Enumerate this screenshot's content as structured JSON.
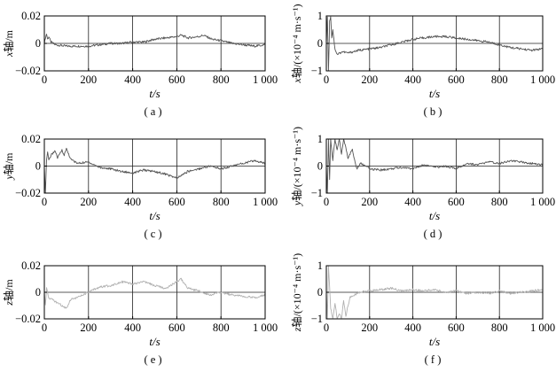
{
  "figure": {
    "panels": [
      {
        "id": "a",
        "ylabel_var": "x",
        "ylabel_rest": "轴/m",
        "xlabel": "t/s",
        "caption": "( a )"
      },
      {
        "id": "b",
        "ylabel_var": "x",
        "ylabel_rest": "轴/(×10⁻⁴ m·s⁻¹)",
        "xlabel": "t/s",
        "caption": "( b )"
      },
      {
        "id": "c",
        "ylabel_var": "y",
        "ylabel_rest": "轴/m",
        "xlabel": "t/s",
        "caption": "( c )"
      },
      {
        "id": "d",
        "ylabel_var": "y",
        "ylabel_rest": "轴/(×10⁻⁴ m·s⁻¹)",
        "xlabel": "t/s",
        "caption": "( d )"
      },
      {
        "id": "e",
        "ylabel_var": "z",
        "ylabel_rest": "轴/m",
        "xlabel": "t/s",
        "caption": "( e )"
      },
      {
        "id": "f",
        "ylabel_var": "z",
        "ylabel_rest": "轴/(×10⁻⁴ m·s⁻¹)",
        "xlabel": "t/s",
        "caption": "( f )"
      }
    ]
  },
  "chart_data": [
    {
      "panel": "a",
      "type": "line",
      "ylabel": "x轴/m",
      "xlabel": "t/s",
      "xlim": [
        0,
        1000
      ],
      "ylim": [
        -0.02,
        0.02
      ],
      "xticks": [
        0,
        200,
        400,
        600,
        800,
        1000
      ],
      "xtick_labels": [
        "0",
        "200",
        "400",
        "600",
        "800",
        "1 000"
      ],
      "yticks": [
        -0.02,
        0,
        0.02
      ],
      "ytick_labels": [
        "−0.02",
        "0",
        "0.02"
      ],
      "grid": "vertical lines at x ticks, horizontal line at y=0",
      "color": "#555555",
      "series": [
        {
          "points": [
            [
              0,
              0.0
            ],
            [
              5,
              0.004
            ],
            [
              10,
              0.007
            ],
            [
              15,
              0.003
            ],
            [
              20,
              0.005
            ],
            [
              30,
              0.001
            ],
            [
              50,
              -0.001
            ],
            [
              100,
              -0.002
            ],
            [
              150,
              -0.002
            ],
            [
              200,
              -0.002
            ],
            [
              250,
              -0.001
            ],
            [
              300,
              0.0
            ],
            [
              350,
              0.0
            ],
            [
              400,
              0.001
            ],
            [
              450,
              0.001
            ],
            [
              500,
              0.003
            ],
            [
              550,
              0.004
            ],
            [
              600,
              0.005
            ],
            [
              620,
              0.006
            ],
            [
              650,
              0.004
            ],
            [
              700,
              0.005
            ],
            [
              720,
              0.006
            ],
            [
              760,
              0.003
            ],
            [
              800,
              0.002
            ],
            [
              850,
              0.0
            ],
            [
              900,
              -0.001
            ],
            [
              950,
              -0.002
            ],
            [
              1000,
              -0.001
            ]
          ]
        }
      ]
    },
    {
      "panel": "b",
      "type": "line",
      "ylabel": "x轴/(×10⁻⁴ m·s⁻¹)",
      "xlabel": "t/s",
      "xlim": [
        0,
        1000
      ],
      "ylim": [
        -1,
        1
      ],
      "xticks": [
        0,
        200,
        400,
        600,
        800,
        1000
      ],
      "xtick_labels": [
        "0",
        "200",
        "400",
        "600",
        "800",
        "1 000"
      ],
      "yticks": [
        -1,
        0,
        1
      ],
      "ytick_labels": [
        "−1",
        "0",
        "1"
      ],
      "grid": "vertical lines at x ticks, horizontal line at y=0",
      "color": "#555555",
      "series": [
        {
          "points": [
            [
              0,
              0.0
            ],
            [
              5,
              1.0
            ],
            [
              10,
              -1.0
            ],
            [
              15,
              0.8
            ],
            [
              20,
              1.0
            ],
            [
              25,
              0.2
            ],
            [
              30,
              0.5
            ],
            [
              40,
              -0.2
            ],
            [
              50,
              -0.4
            ],
            [
              75,
              -0.3
            ],
            [
              100,
              -0.35
            ],
            [
              150,
              -0.25
            ],
            [
              200,
              -0.2
            ],
            [
              250,
              -0.15
            ],
            [
              300,
              -0.05
            ],
            [
              350,
              0.05
            ],
            [
              400,
              0.15
            ],
            [
              450,
              0.2
            ],
            [
              500,
              0.25
            ],
            [
              550,
              0.25
            ],
            [
              600,
              0.2
            ],
            [
              650,
              0.15
            ],
            [
              700,
              0.1
            ],
            [
              750,
              0.05
            ],
            [
              800,
              -0.05
            ],
            [
              850,
              -0.15
            ],
            [
              900,
              -0.2
            ],
            [
              950,
              -0.25
            ],
            [
              1000,
              -0.2
            ]
          ]
        }
      ]
    },
    {
      "panel": "c",
      "type": "line",
      "ylabel": "y轴/m",
      "xlabel": "t/s",
      "xlim": [
        0,
        1000
      ],
      "ylim": [
        -0.02,
        0.02
      ],
      "xticks": [
        0,
        200,
        400,
        600,
        800,
        1000
      ],
      "xtick_labels": [
        "0",
        "200",
        "400",
        "600",
        "800",
        "1 000"
      ],
      "yticks": [
        -0.02,
        0,
        0.02
      ],
      "ytick_labels": [
        "−0.02",
        "0",
        "0.02"
      ],
      "grid": "vertical lines at x ticks, horizontal line at y=0",
      "color": "#555555",
      "series": [
        {
          "points": [
            [
              0,
              0.0
            ],
            [
              5,
              -0.02
            ],
            [
              10,
              0.005
            ],
            [
              15,
              0.01
            ],
            [
              20,
              0.004
            ],
            [
              30,
              0.008
            ],
            [
              40,
              0.01
            ],
            [
              50,
              0.011
            ],
            [
              60,
              0.006
            ],
            [
              70,
              0.009
            ],
            [
              80,
              0.012
            ],
            [
              90,
              0.008
            ],
            [
              100,
              0.013
            ],
            [
              120,
              0.005
            ],
            [
              150,
              0.002
            ],
            [
              200,
              0.003
            ],
            [
              250,
              -0.001
            ],
            [
              300,
              -0.002
            ],
            [
              350,
              -0.004
            ],
            [
              400,
              -0.005
            ],
            [
              450,
              -0.003
            ],
            [
              500,
              -0.004
            ],
            [
              550,
              -0.006
            ],
            [
              600,
              -0.009
            ],
            [
              650,
              -0.004
            ],
            [
              700,
              -0.002
            ],
            [
              750,
              0.0
            ],
            [
              800,
              -0.002
            ],
            [
              850,
              0.0
            ],
            [
              900,
              0.002
            ],
            [
              950,
              0.004
            ],
            [
              1000,
              0.002
            ]
          ]
        }
      ]
    },
    {
      "panel": "d",
      "type": "line",
      "ylabel": "y轴/(×10⁻⁴ m·s⁻¹)",
      "xlabel": "t/s",
      "xlim": [
        0,
        1000
      ],
      "ylim": [
        -1,
        1
      ],
      "xticks": [
        0,
        200,
        400,
        600,
        800,
        1000
      ],
      "xtick_labels": [
        "0",
        "200",
        "400",
        "600",
        "800",
        "1 000"
      ],
      "yticks": [
        -1,
        0,
        1
      ],
      "ytick_labels": [
        "−1",
        "0",
        "1"
      ],
      "grid": "vertical lines at x ticks, horizontal line at y=0",
      "color": "#555555",
      "series": [
        {
          "points": [
            [
              0,
              0.0
            ],
            [
              5,
              -1.0
            ],
            [
              10,
              1.0
            ],
            [
              15,
              -0.5
            ],
            [
              20,
              1.0
            ],
            [
              30,
              0.2
            ],
            [
              40,
              1.0
            ],
            [
              50,
              0.6
            ],
            [
              60,
              1.0
            ],
            [
              70,
              0.4
            ],
            [
              80,
              1.0
            ],
            [
              90,
              0.7
            ],
            [
              100,
              0.3
            ],
            [
              120,
              0.6
            ],
            [
              140,
              -0.1
            ],
            [
              160,
              0.1
            ],
            [
              200,
              -0.1
            ],
            [
              250,
              -0.15
            ],
            [
              300,
              -0.1
            ],
            [
              350,
              -0.05
            ],
            [
              400,
              -0.1
            ],
            [
              450,
              0.05
            ],
            [
              500,
              -0.05
            ],
            [
              550,
              0.0
            ],
            [
              600,
              -0.1
            ],
            [
              650,
              0.1
            ],
            [
              700,
              0.05
            ],
            [
              750,
              0.15
            ],
            [
              800,
              0.1
            ],
            [
              850,
              0.2
            ],
            [
              900,
              0.15
            ],
            [
              950,
              0.1
            ],
            [
              1000,
              0.05
            ]
          ]
        }
      ]
    },
    {
      "panel": "e",
      "type": "line",
      "ylabel": "z轴/m",
      "xlabel": "t/s",
      "xlim": [
        0,
        1000
      ],
      "ylim": [
        -0.02,
        0.02
      ],
      "xticks": [
        0,
        200,
        400,
        600,
        800,
        1000
      ],
      "xtick_labels": [
        "0",
        "200",
        "400",
        "600",
        "800",
        "1 000"
      ],
      "yticks": [
        -0.02,
        0,
        0.02
      ],
      "ytick_labels": [
        "−0.02",
        "0",
        "0.02"
      ],
      "grid": "vertical lines at x ticks, horizontal line at y=0",
      "color": "#b0b0b0",
      "series": [
        {
          "points": [
            [
              0,
              0.0
            ],
            [
              5,
              -0.01
            ],
            [
              10,
              0.004
            ],
            [
              20,
              -0.004
            ],
            [
              40,
              -0.006
            ],
            [
              60,
              -0.008
            ],
            [
              80,
              -0.01
            ],
            [
              100,
              -0.012
            ],
            [
              120,
              -0.005
            ],
            [
              150,
              -0.004
            ],
            [
              200,
              0.0
            ],
            [
              250,
              0.004
            ],
            [
              300,
              0.005
            ],
            [
              350,
              0.008
            ],
            [
              400,
              0.006
            ],
            [
              450,
              0.008
            ],
            [
              500,
              0.005
            ],
            [
              550,
              0.003
            ],
            [
              600,
              0.008
            ],
            [
              620,
              0.01
            ],
            [
              650,
              0.003
            ],
            [
              700,
              0.001
            ],
            [
              750,
              -0.002
            ],
            [
              800,
              0.0
            ],
            [
              850,
              -0.002
            ],
            [
              900,
              -0.003
            ],
            [
              950,
              -0.004
            ],
            [
              1000,
              -0.002
            ]
          ]
        }
      ]
    },
    {
      "panel": "f",
      "type": "line",
      "ylabel": "z轴/(×10⁻⁴ m·s⁻¹)",
      "xlabel": "t/s",
      "xlim": [
        0,
        1000
      ],
      "ylim": [
        -1,
        1
      ],
      "xticks": [
        0,
        200,
        400,
        600,
        800,
        1000
      ],
      "xtick_labels": [
        "0",
        "200",
        "400",
        "600",
        "800",
        "1 000"
      ],
      "yticks": [
        -1,
        0,
        1
      ],
      "ytick_labels": [
        "−1",
        "0",
        "1"
      ],
      "grid": "vertical lines at x ticks, horizontal line at y=0",
      "color": "#b0b0b0",
      "series": [
        {
          "points": [
            [
              0,
              0.0
            ],
            [
              5,
              -1.0
            ],
            [
              10,
              1.0
            ],
            [
              20,
              -0.6
            ],
            [
              30,
              -1.0
            ],
            [
              40,
              -0.4
            ],
            [
              50,
              -1.0
            ],
            [
              60,
              -0.8
            ],
            [
              70,
              -1.0
            ],
            [
              80,
              -0.3
            ],
            [
              90,
              -0.9
            ],
            [
              100,
              -0.5
            ],
            [
              110,
              -0.2
            ],
            [
              130,
              -0.1
            ],
            [
              150,
              0.0
            ],
            [
              200,
              0.05
            ],
            [
              250,
              0.1
            ],
            [
              300,
              0.15
            ],
            [
              350,
              0.05
            ],
            [
              400,
              0.1
            ],
            [
              450,
              0.05
            ],
            [
              500,
              0.1
            ],
            [
              550,
              0.0
            ],
            [
              600,
              0.05
            ],
            [
              650,
              -0.05
            ],
            [
              700,
              0.0
            ],
            [
              750,
              -0.05
            ],
            [
              800,
              0.05
            ],
            [
              850,
              -0.05
            ],
            [
              900,
              0.0
            ],
            [
              950,
              0.05
            ],
            [
              1000,
              0.1
            ]
          ]
        }
      ]
    }
  ]
}
